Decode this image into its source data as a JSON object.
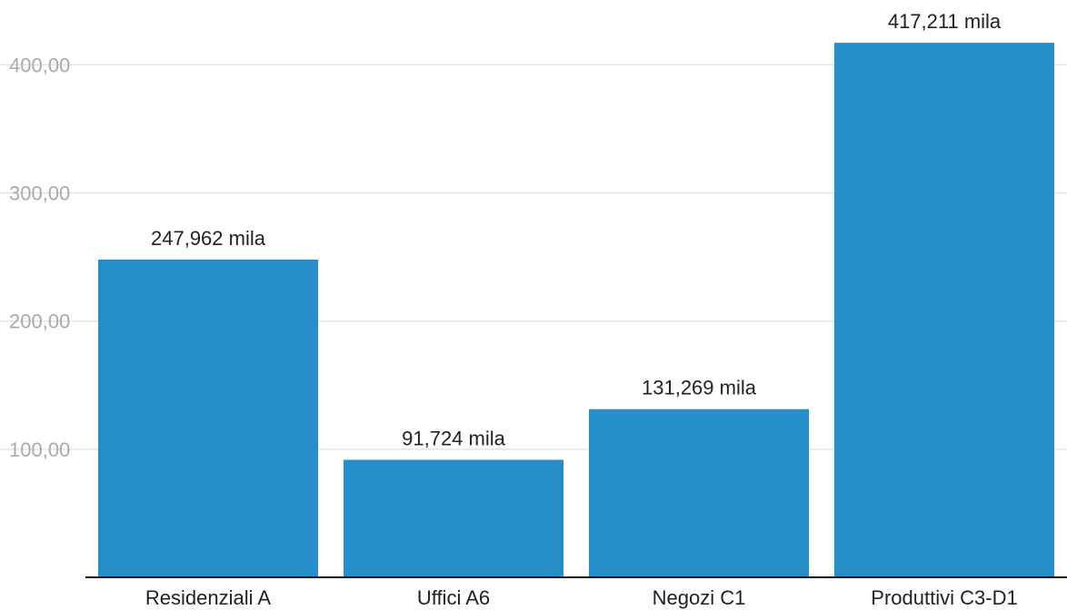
{
  "chart_data": {
    "type": "bar",
    "categories": [
      "Residenziali A",
      "Uffici A6",
      "Negozi C1",
      "Produttivi C3-D1"
    ],
    "values": [
      247.962,
      91.724,
      131.269,
      417.211
    ],
    "data_labels": [
      "247,962 mila",
      "91,724 mila",
      "131,269 mila",
      "417,211 mila"
    ],
    "title": "",
    "xlabel": "",
    "ylabel": "",
    "ylim": [
      0,
      440
    ],
    "yticks": [
      100,
      200,
      300,
      400
    ],
    "ytick_labels": [
      "100,00",
      "200,00",
      "300,00",
      "400,00"
    ],
    "grid": true,
    "bar_color": "#268fca"
  }
}
